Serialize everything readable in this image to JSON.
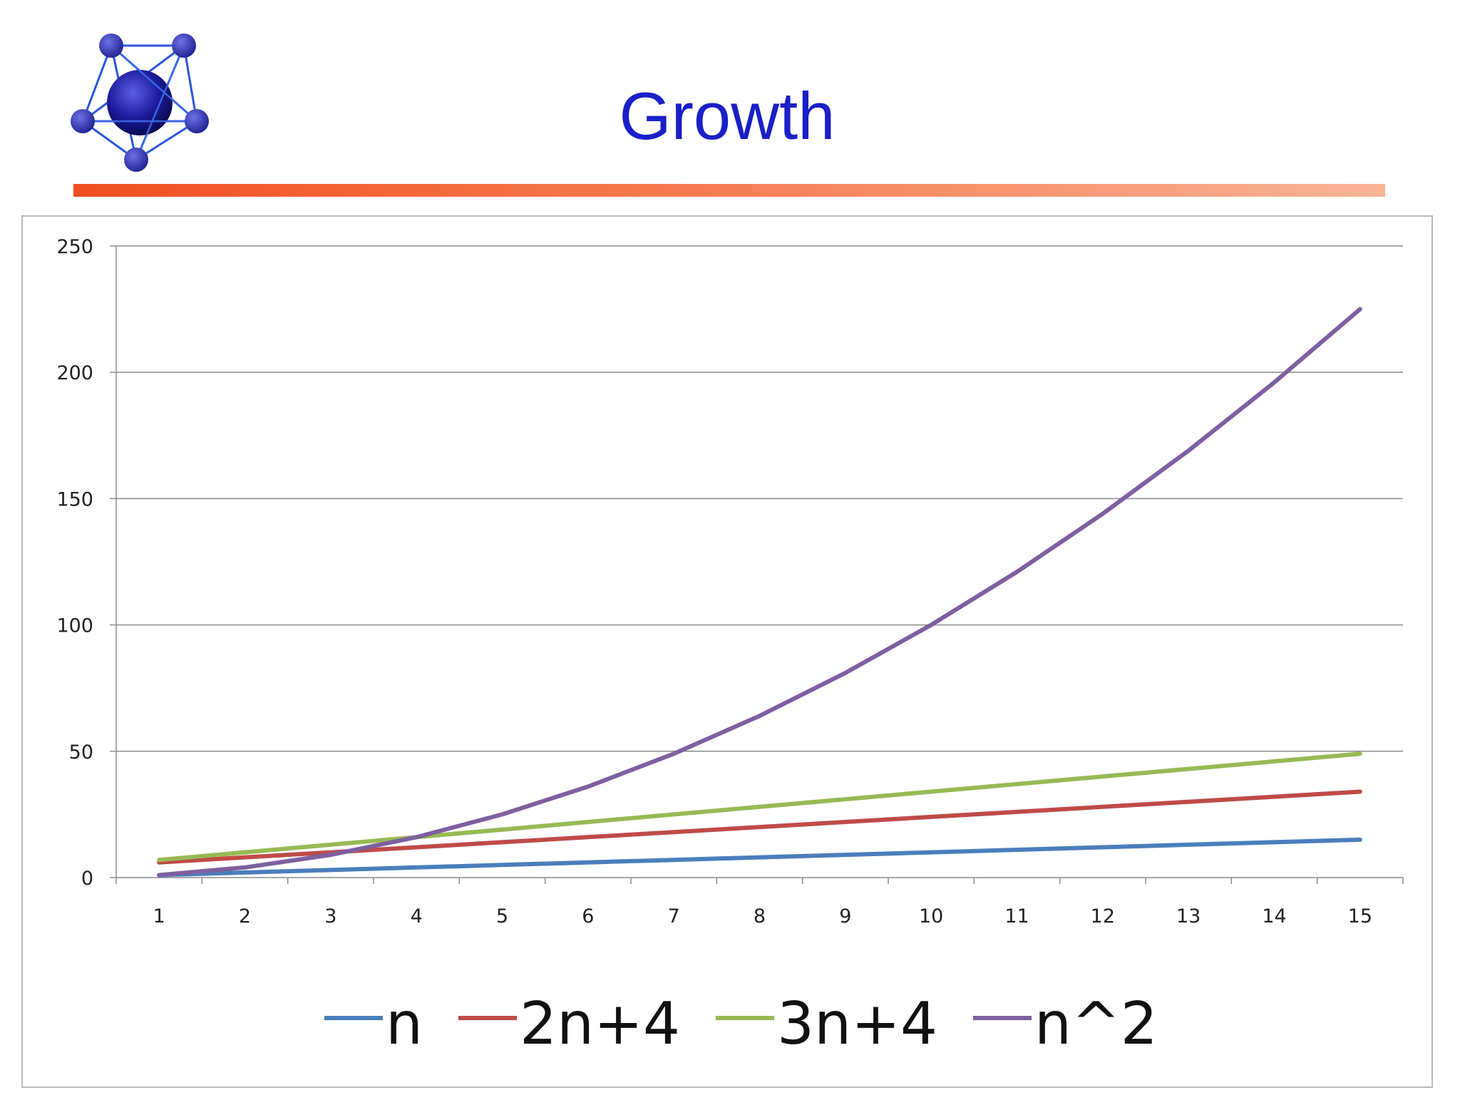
{
  "slide": {
    "title": "Growth"
  },
  "logo": {
    "icon": "molecule-network-icon",
    "colors": {
      "node": "#2a2fa8",
      "edge": "#2b55d8",
      "core": "#1b1b8c"
    }
  },
  "colors": {
    "title": "#1a1fc7",
    "rule_start": "#f04f23",
    "rule_end": "#f9b497"
  },
  "chart_data": {
    "type": "line",
    "title": "",
    "xlabel": "",
    "ylabel": "",
    "x": [
      1,
      2,
      3,
      4,
      5,
      6,
      7,
      8,
      9,
      10,
      11,
      12,
      13,
      14,
      15
    ],
    "ylim": [
      0,
      250
    ],
    "yticks": [
      0,
      50,
      100,
      150,
      200,
      250
    ],
    "grid": true,
    "legend_position": "bottom",
    "series": [
      {
        "name": "n",
        "color": "#4a7ebb",
        "values": [
          1,
          2,
          3,
          4,
          5,
          6,
          7,
          8,
          9,
          10,
          11,
          12,
          13,
          14,
          15
        ]
      },
      {
        "name": "2n+4",
        "color": "#be4b48",
        "values": [
          6,
          8,
          10,
          12,
          14,
          16,
          18,
          20,
          22,
          24,
          26,
          28,
          30,
          32,
          34
        ]
      },
      {
        "name": "3n+4",
        "color": "#98b954",
        "values": [
          7,
          10,
          13,
          16,
          19,
          22,
          25,
          28,
          31,
          34,
          37,
          40,
          43,
          46,
          49
        ]
      },
      {
        "name": "n^2",
        "color": "#7d60a0",
        "values": [
          1,
          4,
          9,
          16,
          25,
          36,
          49,
          64,
          81,
          100,
          121,
          144,
          169,
          196,
          225
        ]
      }
    ]
  }
}
